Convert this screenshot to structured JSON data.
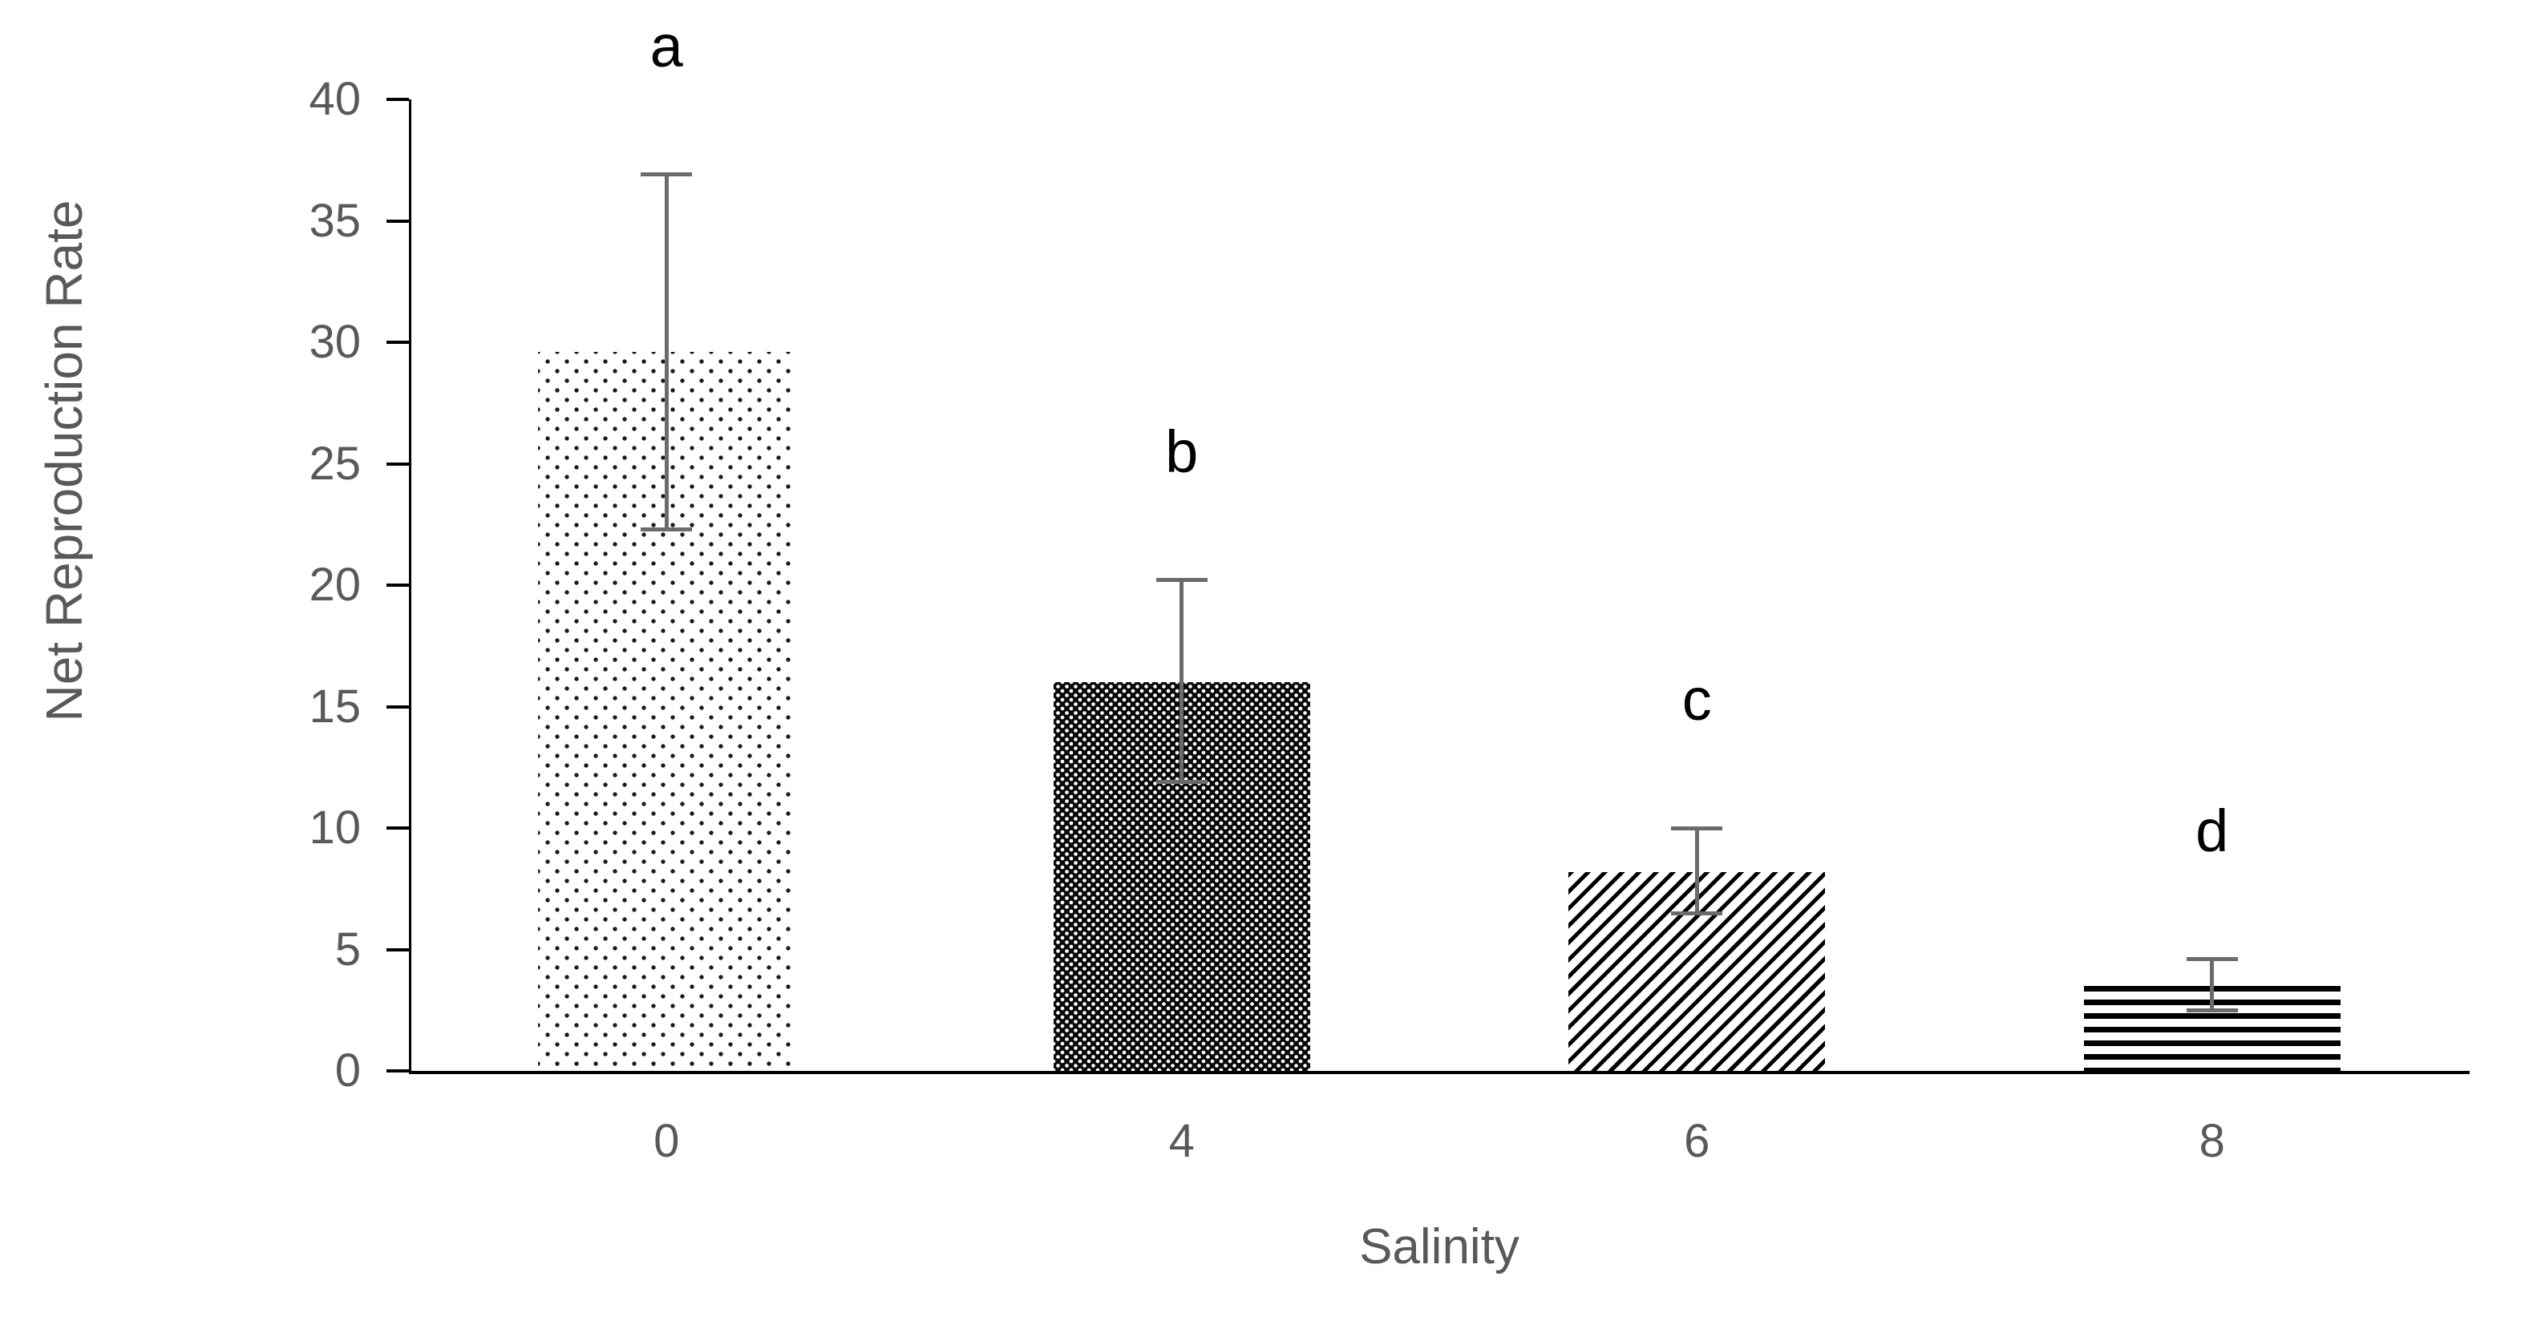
{
  "chart_data": {
    "type": "bar",
    "title": "",
    "categories": [
      "0",
      "4",
      "6",
      "8"
    ],
    "values": [
      29.6,
      16.0,
      8.2,
      3.5
    ],
    "error_upper": [
      36.9,
      20.2,
      10.0,
      4.6
    ],
    "error_lower": [
      22.3,
      11.9,
      6.5,
      2.5
    ],
    "bar_labels": [
      "a",
      "b",
      "c",
      "d"
    ],
    "patterns": [
      "sparse-dots",
      "dense-dots",
      "diagonal-stripes",
      "horizontal-stripes"
    ],
    "xlabel": "Salinity",
    "ylabel": "Net Reproduction Rate",
    "ylim": [
      0,
      40
    ],
    "ytick_step": 5,
    "grid": false,
    "legend": false,
    "colors": {
      "axis": "#000000",
      "text": "#595959",
      "error_bar": "#6b6b6b",
      "letter": "#000000"
    }
  }
}
